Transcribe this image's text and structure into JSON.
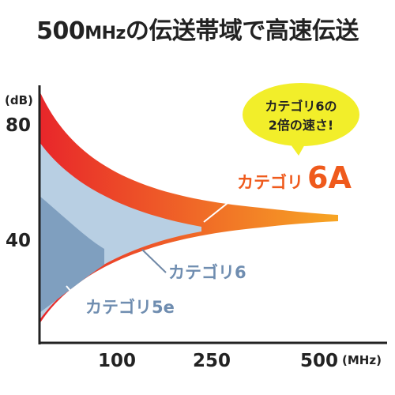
{
  "page": {
    "headline_value": "500",
    "headline_unit": "MHz",
    "headline_rest": "の伝送帯域で高速伝送"
  },
  "callout": {
    "line1": "カテゴリ6の",
    "line2": "2倍の速さ!",
    "color": "#f2ee2a"
  },
  "chart_data": {
    "type": "area",
    "ylabel": "(dB)",
    "xlabel": "(MHz)",
    "x_ticks": [
      "100",
      "250",
      "500"
    ],
    "y_ticks": [
      "80",
      "40"
    ],
    "series": [
      {
        "name": "カテゴリ6A",
        "label_prefix": "カテゴリ",
        "label_suffix": "6A",
        "max_mhz": 500,
        "color_start": "#e8262a",
        "color_end": "#f7a624"
      },
      {
        "name": "カテゴリ6",
        "max_mhz": 250,
        "color": "#b8cfe3"
      },
      {
        "name": "カテゴリ5e",
        "max_mhz": 100,
        "color": "#7f9fbf"
      }
    ]
  }
}
